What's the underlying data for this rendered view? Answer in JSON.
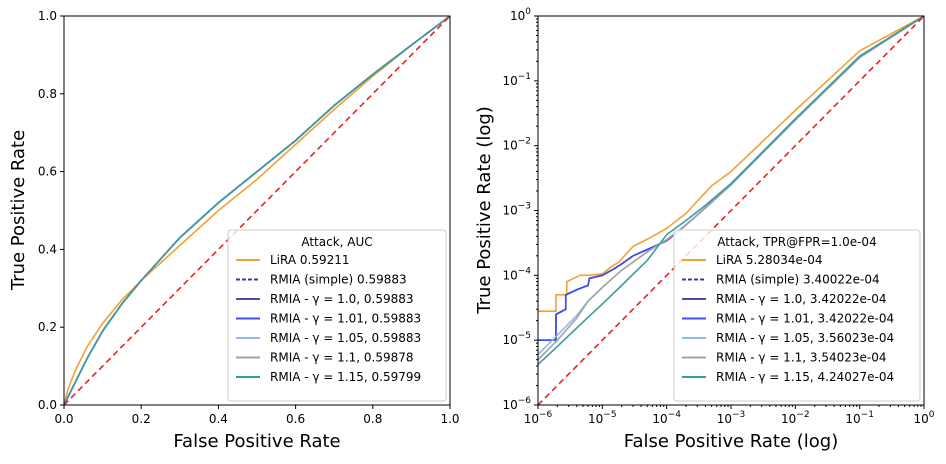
{
  "chart_data": [
    {
      "type": "line",
      "scale": "linear",
      "xlabel": "False Positive Rate",
      "ylabel": "True Positive Rate",
      "xlim": [
        0,
        1
      ],
      "ylim": [
        0,
        1
      ],
      "x_ticks": [
        "0.0",
        "0.2",
        "0.4",
        "0.6",
        "0.8",
        "1.0"
      ],
      "y_ticks": [
        "0.0",
        "0.2",
        "0.4",
        "0.6",
        "0.8",
        "1.0"
      ],
      "legend_title": "Attack, AUC",
      "legend_position": "lower-right",
      "series": [
        {
          "name": "LiRA 0.59211",
          "color": "#f5a033",
          "dash": "solid",
          "x": [
            0,
            0.01,
            0.03,
            0.06,
            0.1,
            0.15,
            0.2,
            0.3,
            0.4,
            0.5,
            0.6,
            0.7,
            0.8,
            0.9,
            1.0
          ],
          "y": [
            0,
            0.04,
            0.09,
            0.15,
            0.21,
            0.27,
            0.32,
            0.41,
            0.5,
            0.58,
            0.67,
            0.76,
            0.845,
            0.925,
            1.0
          ]
        },
        {
          "name": "RMIA (simple) 0.59883",
          "color": "#3a3a9e",
          "dash": "dashed",
          "x": [
            0,
            0.01,
            0.03,
            0.06,
            0.1,
            0.15,
            0.2,
            0.3,
            0.4,
            0.5,
            0.6,
            0.7,
            0.8,
            0.9,
            1.0
          ],
          "y": [
            0,
            0.02,
            0.06,
            0.12,
            0.19,
            0.26,
            0.32,
            0.43,
            0.52,
            0.6,
            0.68,
            0.77,
            0.85,
            0.925,
            1.0
          ]
        },
        {
          "name": "RMIA - γ = 1.0, 0.59883",
          "color": "#4a4aa8",
          "dash": "solid",
          "x": [
            0,
            0.01,
            0.03,
            0.06,
            0.1,
            0.15,
            0.2,
            0.3,
            0.4,
            0.5,
            0.6,
            0.7,
            0.8,
            0.9,
            1.0
          ],
          "y": [
            0,
            0.02,
            0.06,
            0.12,
            0.19,
            0.26,
            0.32,
            0.43,
            0.52,
            0.6,
            0.68,
            0.77,
            0.85,
            0.925,
            1.0
          ]
        },
        {
          "name": "RMIA - γ = 1.01, 0.59883",
          "color": "#3f4ff0",
          "dash": "solid",
          "x": [
            0,
            0.01,
            0.03,
            0.06,
            0.1,
            0.15,
            0.2,
            0.3,
            0.4,
            0.5,
            0.6,
            0.7,
            0.8,
            0.9,
            1.0
          ],
          "y": [
            0,
            0.02,
            0.06,
            0.12,
            0.19,
            0.26,
            0.32,
            0.43,
            0.52,
            0.6,
            0.68,
            0.77,
            0.85,
            0.925,
            1.0
          ]
        },
        {
          "name": "RMIA - γ = 1.05, 0.59883",
          "color": "#8fb8ea",
          "dash": "solid",
          "x": [
            0,
            0.01,
            0.03,
            0.06,
            0.1,
            0.15,
            0.2,
            0.3,
            0.4,
            0.5,
            0.6,
            0.7,
            0.8,
            0.9,
            1.0
          ],
          "y": [
            0,
            0.02,
            0.06,
            0.12,
            0.19,
            0.26,
            0.32,
            0.43,
            0.52,
            0.6,
            0.68,
            0.77,
            0.85,
            0.925,
            1.0
          ]
        },
        {
          "name": "RMIA - γ = 1.1, 0.59878",
          "color": "#a3a3a3",
          "dash": "solid",
          "x": [
            0,
            0.01,
            0.03,
            0.06,
            0.1,
            0.15,
            0.2,
            0.3,
            0.4,
            0.5,
            0.6,
            0.7,
            0.8,
            0.9,
            1.0
          ],
          "y": [
            0,
            0.02,
            0.06,
            0.12,
            0.19,
            0.26,
            0.32,
            0.43,
            0.52,
            0.6,
            0.68,
            0.77,
            0.85,
            0.925,
            1.0
          ]
        },
        {
          "name": "RMIA - γ = 1.15, 0.59799",
          "color": "#3b9aa0",
          "dash": "solid",
          "x": [
            0,
            0.01,
            0.03,
            0.06,
            0.1,
            0.15,
            0.2,
            0.3,
            0.4,
            0.5,
            0.6,
            0.7,
            0.8,
            0.9,
            1.0
          ],
          "y": [
            0,
            0.02,
            0.06,
            0.12,
            0.19,
            0.26,
            0.32,
            0.43,
            0.52,
            0.6,
            0.68,
            0.77,
            0.85,
            0.925,
            1.0
          ]
        }
      ],
      "diagonal": {
        "color": "#e8221f",
        "dash": "dashed"
      }
    },
    {
      "type": "line",
      "scale": "log",
      "xlabel": "False Positive Rate (log)",
      "ylabel": "True Positive Rate (log)",
      "xlim": [
        1e-06,
        1
      ],
      "ylim": [
        1e-06,
        1
      ],
      "x_ticks": [
        {
          "base": "10",
          "exp": "−6"
        },
        {
          "base": "10",
          "exp": "−5"
        },
        {
          "base": "10",
          "exp": "−4"
        },
        {
          "base": "10",
          "exp": "−3"
        },
        {
          "base": "10",
          "exp": "−2"
        },
        {
          "base": "10",
          "exp": "−1"
        },
        {
          "base": "10",
          "exp": "0"
        }
      ],
      "y_ticks": [
        {
          "base": "10",
          "exp": "−6"
        },
        {
          "base": "10",
          "exp": "−5"
        },
        {
          "base": "10",
          "exp": "−4"
        },
        {
          "base": "10",
          "exp": "−3"
        },
        {
          "base": "10",
          "exp": "−2"
        },
        {
          "base": "10",
          "exp": "−1"
        },
        {
          "base": "10",
          "exp": "0"
        }
      ],
      "legend_title": "Attack, TPR@FPR=1.0e-04",
      "legend_position": "lower-right",
      "series": [
        {
          "name": "LiRA 5.28034e-04",
          "color": "#f5a033",
          "dash": "solid",
          "x": [
            1e-06,
            1.9e-06,
            1.9e-06,
            2.8e-06,
            2.8e-06,
            4.5e-06,
            6e-06,
            1e-05,
            1.3e-05,
            1.8e-05,
            2.4e-05,
            3e-05,
            5e-05,
            0.0001,
            0.0002,
            0.0003,
            0.0005,
            0.001,
            0.01,
            0.1,
            1
          ],
          "y": [
            2.8e-05,
            2.8e-05,
            5e-05,
            5e-05,
            8e-05,
            0.0001,
            0.0001,
            0.000105,
            0.00013,
            0.00016,
            0.00022,
            0.00028,
            0.00036,
            0.00053,
            0.0009,
            0.0014,
            0.0024,
            0.004,
            0.035,
            0.29,
            1
          ]
        },
        {
          "name": "RMIA (simple) 3.40022e-04",
          "color": "#3a3a9e",
          "dash": "dashed",
          "x": [
            1e-06,
            1.9e-06,
            1.9e-06,
            2.7e-06,
            2.7e-06,
            4e-06,
            6e-06,
            6.3e-06,
            1e-05,
            1.5e-05,
            2e-05,
            3e-05,
            5e-05,
            0.0001,
            0.0002,
            0.0004,
            0.001,
            0.01,
            0.1,
            1
          ],
          "y": [
            1e-05,
            1e-05,
            2.5e-05,
            3e-05,
            5e-05,
            6e-05,
            7e-05,
            9e-05,
            0.0001,
            0.000125,
            0.00015,
            0.0002,
            0.00025,
            0.00034,
            0.0006,
            0.0011,
            0.0025,
            0.025,
            0.23,
            1
          ]
        },
        {
          "name": "RMIA - γ = 1.0, 3.42022e-04",
          "color": "#4a4aa8",
          "dash": "solid",
          "x": [
            1e-06,
            1.9e-06,
            1.9e-06,
            2.7e-06,
            2.7e-06,
            4e-06,
            6e-06,
            6.3e-06,
            1e-05,
            1.5e-05,
            2e-05,
            3e-05,
            5e-05,
            0.0001,
            0.0002,
            0.0004,
            0.001,
            0.01,
            0.1,
            1
          ],
          "y": [
            1e-05,
            1e-05,
            2.5e-05,
            3e-05,
            5e-05,
            6e-05,
            7e-05,
            9e-05,
            0.0001,
            0.000125,
            0.00015,
            0.0002,
            0.00025,
            0.000342,
            0.0006,
            0.0011,
            0.0025,
            0.025,
            0.23,
            1
          ]
        },
        {
          "name": "RMIA - γ = 1.01, 3.42022e-04",
          "color": "#3f4ff0",
          "dash": "solid",
          "x": [
            1e-06,
            1.9e-06,
            1.9e-06,
            2.7e-06,
            2.7e-06,
            4e-06,
            6e-06,
            6.3e-06,
            1e-05,
            1.5e-05,
            2e-05,
            3e-05,
            5e-05,
            0.0001,
            0.0002,
            0.0004,
            0.001,
            0.01,
            0.1,
            1
          ],
          "y": [
            1e-05,
            1e-05,
            2.5e-05,
            3e-05,
            5e-05,
            6e-05,
            7e-05,
            9e-05,
            0.0001,
            0.000125,
            0.00015,
            0.0002,
            0.00025,
            0.000342,
            0.0006,
            0.0011,
            0.0025,
            0.025,
            0.23,
            1
          ]
        },
        {
          "name": "RMIA - γ = 1.05, 3.56023e-04",
          "color": "#8fb8ea",
          "dash": "solid",
          "x": [
            1e-06,
            2e-06,
            4e-06,
            6e-06,
            1e-05,
            2e-05,
            5e-05,
            0.0001,
            0.0002,
            0.0004,
            0.001,
            0.01,
            0.1,
            1
          ],
          "y": [
            6e-06,
            1.2e-05,
            2.4e-05,
            4e-05,
            6.5e-05,
            0.00012,
            0.00023,
            0.000356,
            0.0006,
            0.0011,
            0.0025,
            0.025,
            0.23,
            1
          ]
        },
        {
          "name": "RMIA - γ = 1.1, 3.54023e-04",
          "color": "#a3a3a3",
          "dash": "solid",
          "x": [
            1e-06,
            2e-06,
            4e-06,
            6e-06,
            1e-05,
            2e-05,
            5e-05,
            0.0001,
            0.0002,
            0.0004,
            0.001,
            0.01,
            0.1,
            1
          ],
          "y": [
            5e-06,
            1e-05,
            2.2e-05,
            4e-05,
            6.5e-05,
            0.00012,
            0.00023,
            0.000354,
            0.0006,
            0.0011,
            0.0025,
            0.025,
            0.23,
            1
          ]
        },
        {
          "name": "RMIA - γ = 1.15, 4.24027e-04",
          "color": "#3b9aa0",
          "dash": "solid",
          "x": [
            1e-06,
            2e-06,
            5e-06,
            1e-05,
            2e-05,
            5e-05,
            0.0001,
            0.0002,
            0.0004,
            0.001,
            0.01,
            0.1,
            1
          ],
          "y": [
            4.2e-06,
            8e-06,
            1.9e-05,
            3.6e-05,
            7e-05,
            0.00017,
            0.000424,
            0.0007,
            0.0012,
            0.0026,
            0.026,
            0.24,
            1
          ]
        }
      ],
      "diagonal": {
        "color": "#e8221f",
        "dash": "dashed"
      }
    }
  ]
}
